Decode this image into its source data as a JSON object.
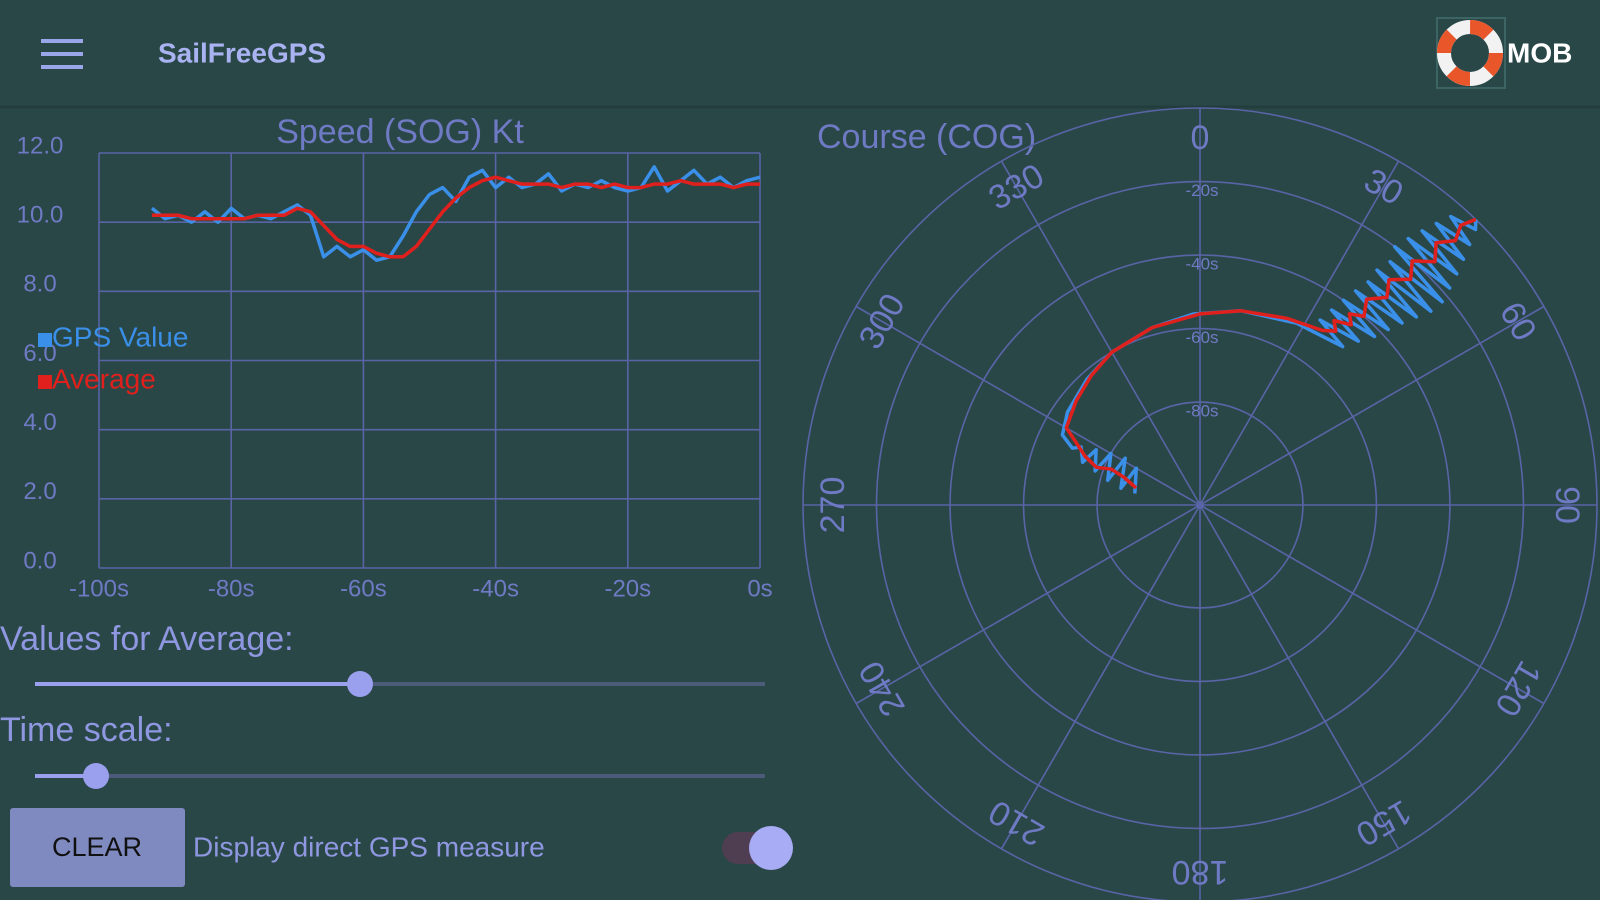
{
  "app_bar": {
    "title": "SailFreeGPS",
    "mob_label": "MOB"
  },
  "chart_data": [
    {
      "type": "line",
      "title": "Speed (SOG) Kt",
      "x": [
        -92,
        -90,
        -88,
        -86,
        -84,
        -82,
        -80,
        -78,
        -76,
        -74,
        -72,
        -70,
        -68,
        -66,
        -64,
        -62,
        -60,
        -58,
        -56,
        -54,
        -52,
        -50,
        -48,
        -46,
        -44,
        -42,
        -40,
        -38,
        -36,
        -34,
        -32,
        -30,
        -28,
        -26,
        -24,
        -22,
        -20,
        -18,
        -16,
        -14,
        -12,
        -10,
        -8,
        -6,
        -4,
        -2,
        0
      ],
      "series": [
        {
          "name": "GPS Value",
          "color": "#3a8fe8",
          "values": [
            10.4,
            10.1,
            10.2,
            10.0,
            10.3,
            10.0,
            10.4,
            10.1,
            10.2,
            10.1,
            10.3,
            10.5,
            10.2,
            9.0,
            9.3,
            9.0,
            9.2,
            8.9,
            9.0,
            9.6,
            10.3,
            10.8,
            11.0,
            10.6,
            11.3,
            11.5,
            11.0,
            11.3,
            11.0,
            11.1,
            11.4,
            10.9,
            11.1,
            11.0,
            11.2,
            11.0,
            10.9,
            11.0,
            11.6,
            10.9,
            11.2,
            11.5,
            11.1,
            11.3,
            11.0,
            11.2,
            11.3
          ]
        },
        {
          "name": "Average",
          "color": "#e0201c",
          "values": [
            10.2,
            10.2,
            10.2,
            10.1,
            10.1,
            10.1,
            10.1,
            10.1,
            10.2,
            10.2,
            10.2,
            10.4,
            10.3,
            9.9,
            9.5,
            9.3,
            9.3,
            9.1,
            9.0,
            9.0,
            9.3,
            9.8,
            10.3,
            10.7,
            11.0,
            11.2,
            11.3,
            11.2,
            11.1,
            11.1,
            11.1,
            11.0,
            11.1,
            11.1,
            11.0,
            11.1,
            11.0,
            11.0,
            11.1,
            11.1,
            11.2,
            11.1,
            11.1,
            11.1,
            11.0,
            11.1,
            11.1
          ]
        }
      ],
      "xlim": [
        -100,
        0
      ],
      "ylim": [
        0,
        12
      ],
      "xticks": [
        {
          "value": -100,
          "label": "-100s"
        },
        {
          "value": -80,
          "label": "-80s"
        },
        {
          "value": -60,
          "label": "-60s"
        },
        {
          "value": -40,
          "label": "-40s"
        },
        {
          "value": -20,
          "label": "-20s"
        },
        {
          "value": 0,
          "label": "0s"
        }
      ],
      "yticks": [
        {
          "value": 0,
          "label": "0.0"
        },
        {
          "value": 2,
          "label": "2.0"
        },
        {
          "value": 4,
          "label": "4.0"
        },
        {
          "value": 6,
          "label": "6.0"
        },
        {
          "value": 8,
          "label": "8.0"
        },
        {
          "value": 10,
          "label": "10.0"
        },
        {
          "value": 12,
          "label": "12.0"
        }
      ],
      "grid": true
    },
    {
      "type": "polar",
      "title": "Course (COG)",
      "series": [
        {
          "name": "GPS Value",
          "color": "#3a8fe8",
          "r": [
            -90,
            -88,
            -86,
            -84,
            -82,
            -80,
            -78,
            -76,
            -74,
            -72,
            -70,
            -66,
            -64,
            -62,
            -60,
            -58,
            -56,
            -54,
            -52,
            -50,
            -48,
            -46,
            -44,
            -42,
            -40,
            -38,
            -36,
            -34,
            -32,
            -30,
            -28,
            -26,
            -24,
            -22,
            -20,
            -18,
            -16,
            -14,
            -12,
            -10,
            -8,
            -6,
            -4,
            -2,
            0
          ],
          "values": [
            280,
            300,
            282,
            302,
            285,
            300,
            288,
            298,
            290,
            296,
            294,
            297,
            305,
            318,
            330,
            345,
            358,
            12,
            28,
            42,
            33,
            44,
            34,
            46,
            35,
            47,
            36,
            48,
            37,
            49,
            37,
            50,
            38,
            50,
            37,
            49,
            38,
            48,
            39,
            47,
            40,
            46,
            41,
            45,
            44
          ]
        },
        {
          "name": "Average",
          "color": "#e0201c",
          "r": [
            -90,
            -86,
            -82,
            -78,
            -74,
            -70,
            -66,
            -64,
            -62,
            -60,
            -58,
            -56,
            -54,
            -52,
            -50,
            -48,
            -46,
            -44,
            -42,
            -40,
            -36,
            -32,
            -28,
            -24,
            -20,
            -16,
            -12,
            -8,
            -4,
            0
          ],
          "values": [
            285,
            290,
            292,
            290,
            293,
            297,
            300,
            310,
            320,
            330,
            345,
            0,
            12,
            25,
            35,
            38,
            36,
            40,
            38,
            41,
            39,
            42,
            40,
            43,
            41,
            44,
            42,
            44,
            43,
            44
          ]
        }
      ],
      "rlim": [
        -108,
        0
      ],
      "rticks": [
        {
          "value": -80,
          "label": "-80s"
        },
        {
          "value": -60,
          "label": "-60s"
        },
        {
          "value": -40,
          "label": "-40s"
        },
        {
          "value": -20,
          "label": "-20s"
        }
      ],
      "thetaticks": [
        0,
        30,
        60,
        90,
        120,
        150,
        180,
        210,
        240,
        270,
        300,
        330
      ]
    }
  ],
  "controls": {
    "average_label": "Values for Average:",
    "time_scale_label": "Time scale:",
    "clear_button": "CLEAR",
    "switch_label": "Display direct GPS measure"
  }
}
